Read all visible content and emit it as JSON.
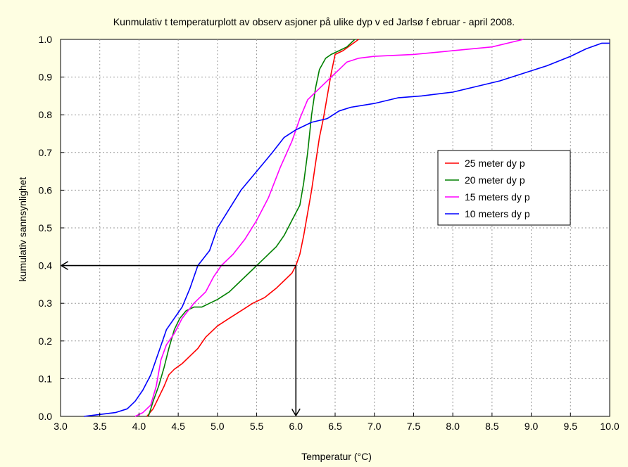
{
  "chart_data": {
    "type": "line",
    "title": "Kunmulativ t temperaturplott av observ asjoner på ulike dyp v ed Jarlsø f ebruar - april 2008.",
    "xlabel": "Temperatur (°C)",
    "ylabel": "kumulativ sannsynlighet",
    "xlim": [
      3.0,
      10.0
    ],
    "ylim": [
      0.0,
      1.0
    ],
    "x_ticks": [
      "3.0",
      "3.5",
      "4.0",
      "4.5",
      "5.0",
      "5.5",
      "6.0",
      "6.5",
      "7.0",
      "7.5",
      "8.0",
      "8.5",
      "9.0",
      "9.5",
      "10.0"
    ],
    "y_ticks": [
      "0.0",
      "0.1",
      "0.2",
      "0.3",
      "0.4",
      "0.5",
      "0.6",
      "0.7",
      "0.8",
      "0.9",
      "1.0"
    ],
    "grid": true,
    "legend_position": "right",
    "background_color": "#fefee2",
    "plot_background": "#ffffff",
    "series": [
      {
        "name": "25 meter dy p",
        "color": "#ff0000",
        "points": [
          [
            4.1,
            0.0
          ],
          [
            4.18,
            0.02
          ],
          [
            4.25,
            0.05
          ],
          [
            4.32,
            0.08
          ],
          [
            4.38,
            0.11
          ],
          [
            4.45,
            0.125
          ],
          [
            4.55,
            0.14
          ],
          [
            4.65,
            0.16
          ],
          [
            4.75,
            0.18
          ],
          [
            4.85,
            0.21
          ],
          [
            5.0,
            0.24
          ],
          [
            5.15,
            0.26
          ],
          [
            5.3,
            0.28
          ],
          [
            5.45,
            0.3
          ],
          [
            5.6,
            0.315
          ],
          [
            5.75,
            0.34
          ],
          [
            5.85,
            0.36
          ],
          [
            5.95,
            0.38
          ],
          [
            6.0,
            0.4
          ],
          [
            6.05,
            0.43
          ],
          [
            6.1,
            0.48
          ],
          [
            6.15,
            0.54
          ],
          [
            6.2,
            0.6
          ],
          [
            6.25,
            0.67
          ],
          [
            6.3,
            0.74
          ],
          [
            6.35,
            0.79
          ],
          [
            6.4,
            0.85
          ],
          [
            6.45,
            0.91
          ],
          [
            6.5,
            0.96
          ],
          [
            6.6,
            0.97
          ],
          [
            6.7,
            0.985
          ],
          [
            6.8,
            1.0
          ]
        ]
      },
      {
        "name": "20 meter dy p",
        "color": "#008000",
        "points": [
          [
            4.12,
            0.0
          ],
          [
            4.18,
            0.04
          ],
          [
            4.25,
            0.08
          ],
          [
            4.32,
            0.13
          ],
          [
            4.38,
            0.18
          ],
          [
            4.45,
            0.23
          ],
          [
            4.52,
            0.26
          ],
          [
            4.6,
            0.28
          ],
          [
            4.7,
            0.29
          ],
          [
            4.8,
            0.29
          ],
          [
            4.9,
            0.3
          ],
          [
            5.0,
            0.31
          ],
          [
            5.15,
            0.33
          ],
          [
            5.3,
            0.36
          ],
          [
            5.45,
            0.39
          ],
          [
            5.6,
            0.42
          ],
          [
            5.75,
            0.45
          ],
          [
            5.85,
            0.48
          ],
          [
            5.95,
            0.52
          ],
          [
            6.05,
            0.56
          ],
          [
            6.1,
            0.62
          ],
          [
            6.15,
            0.7
          ],
          [
            6.2,
            0.8
          ],
          [
            6.25,
            0.87
          ],
          [
            6.3,
            0.92
          ],
          [
            6.38,
            0.95
          ],
          [
            6.45,
            0.96
          ],
          [
            6.55,
            0.97
          ],
          [
            6.65,
            0.98
          ],
          [
            6.75,
            1.0
          ]
        ]
      },
      {
        "name": "15 meters dy p",
        "color": "#ff00ff",
        "points": [
          [
            3.95,
            0.0
          ],
          [
            4.05,
            0.01
          ],
          [
            4.15,
            0.03
          ],
          [
            4.22,
            0.08
          ],
          [
            4.28,
            0.15
          ],
          [
            4.35,
            0.19
          ],
          [
            4.45,
            0.22
          ],
          [
            4.55,
            0.26
          ],
          [
            4.7,
            0.3
          ],
          [
            4.85,
            0.33
          ],
          [
            4.95,
            0.37
          ],
          [
            5.05,
            0.4
          ],
          [
            5.2,
            0.43
          ],
          [
            5.35,
            0.47
          ],
          [
            5.5,
            0.52
          ],
          [
            5.65,
            0.58
          ],
          [
            5.8,
            0.66
          ],
          [
            5.95,
            0.73
          ],
          [
            6.05,
            0.79
          ],
          [
            6.15,
            0.84
          ],
          [
            6.3,
            0.87
          ],
          [
            6.45,
            0.9
          ],
          [
            6.55,
            0.92
          ],
          [
            6.65,
            0.94
          ],
          [
            6.8,
            0.95
          ],
          [
            7.0,
            0.955
          ],
          [
            7.5,
            0.96
          ],
          [
            8.0,
            0.97
          ],
          [
            8.5,
            0.98
          ],
          [
            8.9,
            1.0
          ]
        ]
      },
      {
        "name": "10 meters dy p",
        "color": "#0000ff",
        "points": [
          [
            3.3,
            0.0
          ],
          [
            3.5,
            0.005
          ],
          [
            3.7,
            0.01
          ],
          [
            3.85,
            0.02
          ],
          [
            3.95,
            0.04
          ],
          [
            4.05,
            0.07
          ],
          [
            4.15,
            0.11
          ],
          [
            4.25,
            0.17
          ],
          [
            4.35,
            0.23
          ],
          [
            4.45,
            0.26
          ],
          [
            4.55,
            0.29
          ],
          [
            4.65,
            0.34
          ],
          [
            4.75,
            0.4
          ],
          [
            4.9,
            0.44
          ],
          [
            5.0,
            0.5
          ],
          [
            5.15,
            0.55
          ],
          [
            5.3,
            0.6
          ],
          [
            5.5,
            0.65
          ],
          [
            5.7,
            0.7
          ],
          [
            5.85,
            0.74
          ],
          [
            6.0,
            0.76
          ],
          [
            6.2,
            0.78
          ],
          [
            6.4,
            0.79
          ],
          [
            6.55,
            0.81
          ],
          [
            6.7,
            0.82
          ],
          [
            7.0,
            0.83
          ],
          [
            7.3,
            0.845
          ],
          [
            7.6,
            0.85
          ],
          [
            8.0,
            0.86
          ],
          [
            8.3,
            0.875
          ],
          [
            8.6,
            0.89
          ],
          [
            8.9,
            0.91
          ],
          [
            9.2,
            0.93
          ],
          [
            9.5,
            0.955
          ],
          [
            9.7,
            0.975
          ],
          [
            9.9,
            0.99
          ],
          [
            10.0,
            0.99
          ]
        ]
      }
    ],
    "annotations": [
      {
        "type": "arrow",
        "from": [
          6.0,
          0.4
        ],
        "to": [
          3.0,
          0.4
        ]
      },
      {
        "type": "arrow",
        "from": [
          6.0,
          0.4
        ],
        "to": [
          6.0,
          0.0
        ]
      }
    ]
  }
}
